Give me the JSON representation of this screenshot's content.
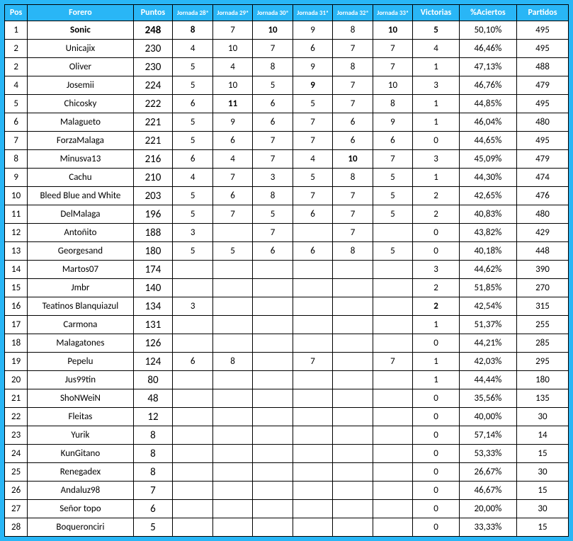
{
  "colors": {
    "background": "#29b6f6",
    "cell_bg": "#ffffff",
    "border": "#000000",
    "header_text": "#ffffff",
    "cell_text": "#000000"
  },
  "columns": [
    {
      "key": "pos",
      "label": "Pos",
      "class": "col-pos"
    },
    {
      "key": "forero",
      "label": "Forero",
      "class": "col-forero"
    },
    {
      "key": "puntos",
      "label": "Puntos",
      "class": "col-puntos"
    },
    {
      "key": "j28",
      "label": "Jornada 28ª",
      "class": "col-jor jor"
    },
    {
      "key": "j29",
      "label": "Jornada 29ª",
      "class": "col-jor jor"
    },
    {
      "key": "j30",
      "label": "Jornada 30ª",
      "class": "col-jor jor"
    },
    {
      "key": "j31",
      "label": "Jornada 31ª",
      "class": "col-jor jor"
    },
    {
      "key": "j32",
      "label": "Jornada 32ª",
      "class": "col-jor jor"
    },
    {
      "key": "j33",
      "label": "Jornada 33ª",
      "class": "col-jor jor"
    },
    {
      "key": "victorias",
      "label": "Victorias",
      "class": "col-vic"
    },
    {
      "key": "aciertos",
      "label": "%Aciertos",
      "class": "col-pct"
    },
    {
      "key": "partidos",
      "label": "Partidos",
      "class": "col-part"
    }
  ],
  "bold_cells": {
    "0": [
      "forero",
      "puntos",
      "j28",
      "j30",
      "j33",
      "victorias"
    ],
    "3": [
      "j31"
    ],
    "4": [
      "j29"
    ],
    "7": [
      "j32"
    ],
    "15": [
      "victorias"
    ]
  },
  "rows": [
    {
      "pos": "1",
      "forero": "Sonic",
      "puntos": "248",
      "j28": "8",
      "j29": "7",
      "j30": "10",
      "j31": "9",
      "j32": "8",
      "j33": "10",
      "victorias": "5",
      "aciertos": "50,10%",
      "partidos": "495"
    },
    {
      "pos": "2",
      "forero": "Unicajix",
      "puntos": "230",
      "j28": "4",
      "j29": "10",
      "j30": "7",
      "j31": "6",
      "j32": "7",
      "j33": "7",
      "victorias": "4",
      "aciertos": "46,46%",
      "partidos": "495"
    },
    {
      "pos": "2",
      "forero": "Oliver",
      "puntos": "230",
      "j28": "5",
      "j29": "4",
      "j30": "8",
      "j31": "9",
      "j32": "8",
      "j33": "7",
      "victorias": "1",
      "aciertos": "47,13%",
      "partidos": "488"
    },
    {
      "pos": "4",
      "forero": "Josemii",
      "puntos": "224",
      "j28": "5",
      "j29": "10",
      "j30": "5",
      "j31": "9",
      "j32": "7",
      "j33": "10",
      "victorias": "3",
      "aciertos": "46,76%",
      "partidos": "479"
    },
    {
      "pos": "5",
      "forero": "Chicosky",
      "puntos": "222",
      "j28": "6",
      "j29": "11",
      "j30": "6",
      "j31": "5",
      "j32": "7",
      "j33": "8",
      "victorias": "1",
      "aciertos": "44,85%",
      "partidos": "495"
    },
    {
      "pos": "6",
      "forero": "Malagueto",
      "puntos": "221",
      "j28": "5",
      "j29": "9",
      "j30": "6",
      "j31": "7",
      "j32": "6",
      "j33": "9",
      "victorias": "1",
      "aciertos": "46,04%",
      "partidos": "480"
    },
    {
      "pos": "7",
      "forero": "ForzaMalaga",
      "puntos": "221",
      "j28": "5",
      "j29": "6",
      "j30": "7",
      "j31": "7",
      "j32": "6",
      "j33": "6",
      "victorias": "0",
      "aciertos": "44,65%",
      "partidos": "495"
    },
    {
      "pos": "8",
      "forero": "Minusva13",
      "puntos": "216",
      "j28": "6",
      "j29": "4",
      "j30": "7",
      "j31": "4",
      "j32": "10",
      "j33": "7",
      "victorias": "3",
      "aciertos": "45,09%",
      "partidos": "479"
    },
    {
      "pos": "9",
      "forero": "Cachu",
      "puntos": "210",
      "j28": "4",
      "j29": "7",
      "j30": "3",
      "j31": "5",
      "j32": "8",
      "j33": "5",
      "victorias": "1",
      "aciertos": "44,30%",
      "partidos": "474"
    },
    {
      "pos": "10",
      "forero": "Bleed Blue and White",
      "puntos": "203",
      "j28": "5",
      "j29": "6",
      "j30": "8",
      "j31": "7",
      "j32": "7",
      "j33": "5",
      "victorias": "2",
      "aciertos": "42,65%",
      "partidos": "476"
    },
    {
      "pos": "11",
      "forero": "DelMalaga",
      "puntos": "196",
      "j28": "5",
      "j29": "7",
      "j30": "5",
      "j31": "6",
      "j32": "7",
      "j33": "5",
      "victorias": "2",
      "aciertos": "40,83%",
      "partidos": "480"
    },
    {
      "pos": "12",
      "forero": "Antoñito",
      "puntos": "188",
      "j28": "3",
      "j29": "",
      "j30": "7",
      "j31": "",
      "j32": "7",
      "j33": "",
      "victorias": "0",
      "aciertos": "43,82%",
      "partidos": "429"
    },
    {
      "pos": "13",
      "forero": "Georgesand",
      "puntos": "180",
      "j28": "5",
      "j29": "5",
      "j30": "6",
      "j31": "6",
      "j32": "8",
      "j33": "5",
      "victorias": "0",
      "aciertos": "40,18%",
      "partidos": "448"
    },
    {
      "pos": "14",
      "forero": "Martos07",
      "puntos": "174",
      "j28": "",
      "j29": "",
      "j30": "",
      "j31": "",
      "j32": "",
      "j33": "",
      "victorias": "3",
      "aciertos": "44,62%",
      "partidos": "390"
    },
    {
      "pos": "15",
      "forero": "Jmbr",
      "puntos": "140",
      "j28": "",
      "j29": "",
      "j30": "",
      "j31": "",
      "j32": "",
      "j33": "",
      "victorias": "2",
      "aciertos": "51,85%",
      "partidos": "270"
    },
    {
      "pos": "16",
      "forero": "Teatinos Blanquiazul",
      "puntos": "134",
      "j28": "3",
      "j29": "",
      "j30": "",
      "j31": "",
      "j32": "",
      "j33": "",
      "victorias": "2",
      "aciertos": "42,54%",
      "partidos": "315"
    },
    {
      "pos": "17",
      "forero": "Carmona",
      "puntos": "131",
      "j28": "",
      "j29": "",
      "j30": "",
      "j31": "",
      "j32": "",
      "j33": "",
      "victorias": "1",
      "aciertos": "51,37%",
      "partidos": "255"
    },
    {
      "pos": "18",
      "forero": "Malagatones",
      "puntos": "126",
      "j28": "",
      "j29": "",
      "j30": "",
      "j31": "",
      "j32": "",
      "j33": "",
      "victorias": "0",
      "aciertos": "44,21%",
      "partidos": "285"
    },
    {
      "pos": "19",
      "forero": "Pepelu",
      "puntos": "124",
      "j28": "6",
      "j29": "8",
      "j30": "",
      "j31": "7",
      "j32": "",
      "j33": "7",
      "victorias": "1",
      "aciertos": "42,03%",
      "partidos": "295"
    },
    {
      "pos": "20",
      "forero": "Jus99tin",
      "puntos": "80",
      "j28": "",
      "j29": "",
      "j30": "",
      "j31": "",
      "j32": "",
      "j33": "",
      "victorias": "1",
      "aciertos": "44,44%",
      "partidos": "180"
    },
    {
      "pos": "21",
      "forero": "ShoNWeiN",
      "puntos": "48",
      "j28": "",
      "j29": "",
      "j30": "",
      "j31": "",
      "j32": "",
      "j33": "",
      "victorias": "0",
      "aciertos": "35,56%",
      "partidos": "135"
    },
    {
      "pos": "22",
      "forero": "Fleitas",
      "puntos": "12",
      "j28": "",
      "j29": "",
      "j30": "",
      "j31": "",
      "j32": "",
      "j33": "",
      "victorias": "0",
      "aciertos": "40,00%",
      "partidos": "30"
    },
    {
      "pos": "23",
      "forero": "Yurik",
      "puntos": "8",
      "j28": "",
      "j29": "",
      "j30": "",
      "j31": "",
      "j32": "",
      "j33": "",
      "victorias": "0",
      "aciertos": "57,14%",
      "partidos": "14"
    },
    {
      "pos": "24",
      "forero": "KunGitano",
      "puntos": "8",
      "j28": "",
      "j29": "",
      "j30": "",
      "j31": "",
      "j32": "",
      "j33": "",
      "victorias": "0",
      "aciertos": "53,33%",
      "partidos": "15"
    },
    {
      "pos": "25",
      "forero": "Renegadex",
      "puntos": "8",
      "j28": "",
      "j29": "",
      "j30": "",
      "j31": "",
      "j32": "",
      "j33": "",
      "victorias": "0",
      "aciertos": "26,67%",
      "partidos": "30"
    },
    {
      "pos": "26",
      "forero": "Andaluz98",
      "puntos": "7",
      "j28": "",
      "j29": "",
      "j30": "",
      "j31": "",
      "j32": "",
      "j33": "",
      "victorias": "0",
      "aciertos": "46,67%",
      "partidos": "15"
    },
    {
      "pos": "27",
      "forero": "Señor topo",
      "puntos": "6",
      "j28": "",
      "j29": "",
      "j30": "",
      "j31": "",
      "j32": "",
      "j33": "",
      "victorias": "0",
      "aciertos": "20,00%",
      "partidos": "30"
    },
    {
      "pos": "28",
      "forero": "Boqueronciri",
      "puntos": "5",
      "j28": "",
      "j29": "",
      "j30": "",
      "j31": "",
      "j32": "",
      "j33": "",
      "victorias": "0",
      "aciertos": "33,33%",
      "partidos": "15"
    }
  ]
}
